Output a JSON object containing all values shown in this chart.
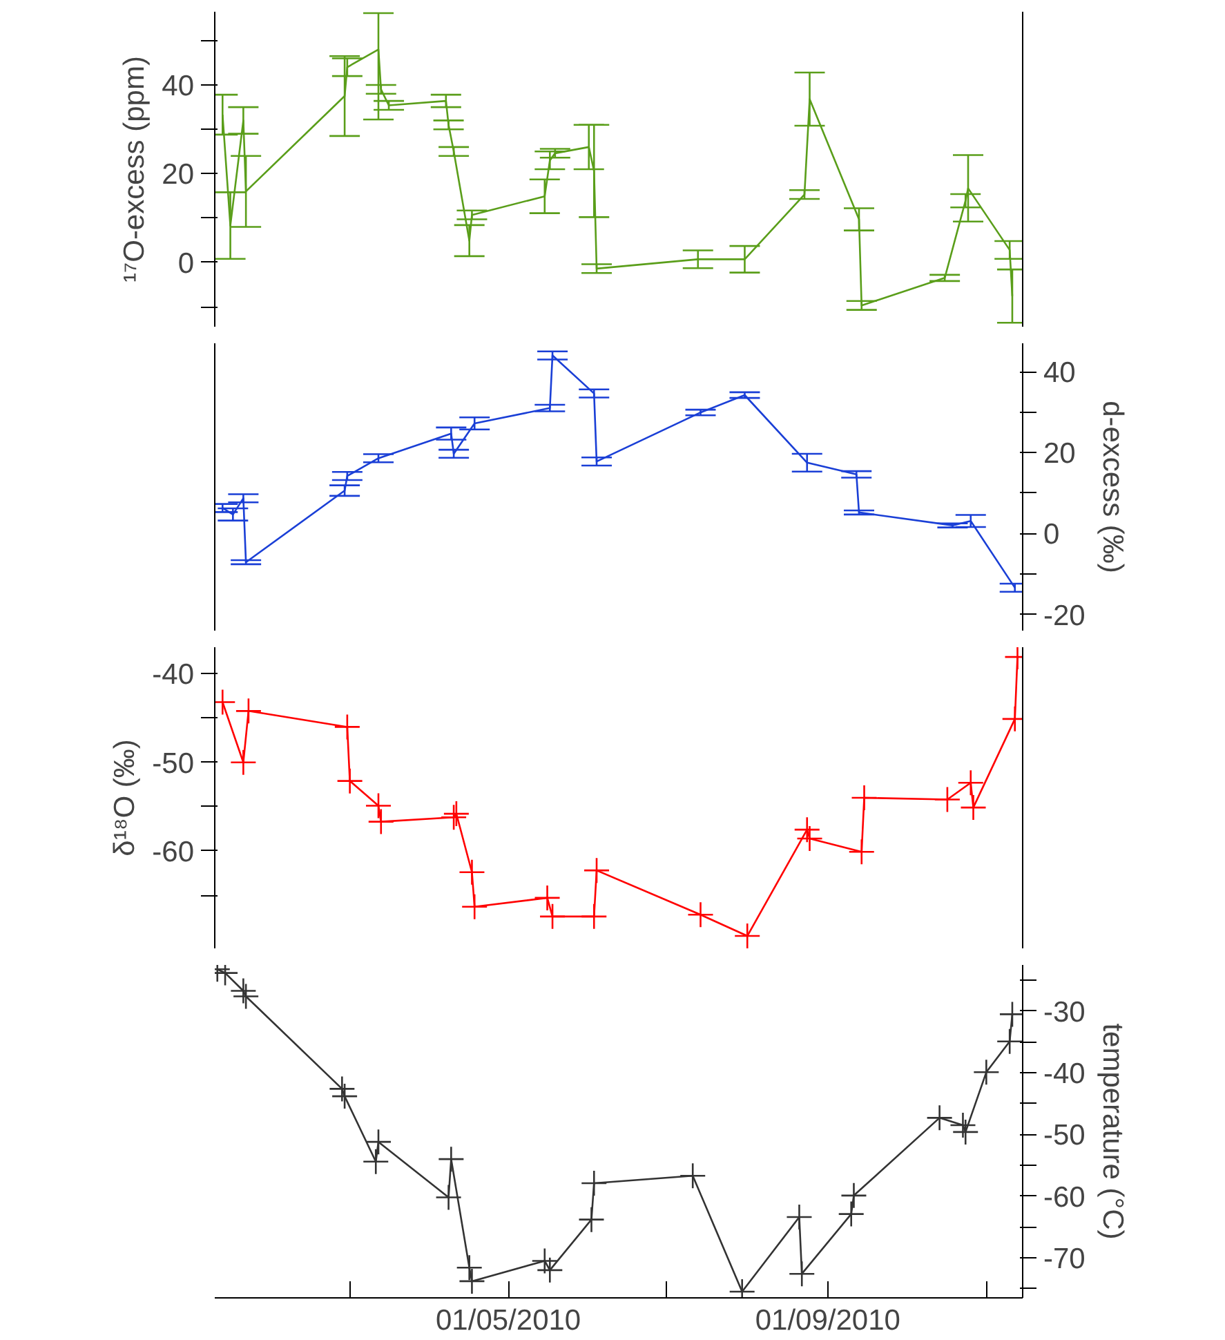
{
  "chart_data": [
    {
      "type": "line",
      "ylabel": "¹⁷O-excess (ppm)",
      "xlim": [
        "2010-01-08",
        "2010-11-15"
      ],
      "ylim": [
        -14.5,
        56.5
      ],
      "yticks": [
        {
          "value": -10,
          "label": null
        },
        0,
        {
          "value": 10,
          "label": null
        },
        20,
        {
          "value": 30,
          "label": null
        },
        40,
        {
          "value": 50,
          "label": null
        }
      ],
      "tick_labels": "y",
      "marker": "none",
      "line_style": "solid",
      "series": [
        {
          "color": "#5a9e1a",
          "x": [
            "2010-01-11",
            "2010-01-14",
            "2010-01-19",
            "2010-01-20",
            "2010-02-27",
            "2010-02-28",
            "2010-03-12",
            "2010-03-13",
            "2010-03-16",
            "2010-04-07",
            "2010-04-08",
            "2010-04-10",
            "2010-04-16",
            "2010-04-17",
            "2010-05-15",
            "2010-05-17",
            "2010-05-19",
            "2010-06-01",
            "2010-06-03",
            "2010-06-04",
            "2010-07-13",
            "2010-07-31",
            "2010-08-23",
            "2010-08-25",
            "2010-09-13",
            "2010-09-14",
            "2010-10-16",
            "2010-10-24",
            "2010-10-25",
            "2010-11-10",
            "2010-11-11"
          ],
          "values": [
            33.3,
            8.3,
            32,
            16,
            37.5,
            44,
            48,
            39,
            35.4,
            36.4,
            31,
            25,
            4.9,
            10.7,
            14.9,
            23,
            24.6,
            26,
            20.6,
            -1.4,
            0.7,
            0.7,
            15.3,
            36.8,
            9.7,
            -9.7,
            -3.5,
            13.9,
            16.7,
            2.8,
            -7.6
          ],
          "errors": [
            4.5,
            7.5,
            3,
            8,
            9,
            2,
            [
              32.2,
              56.2
            ],
            1,
            1,
            1.4,
            1,
            1,
            3.5,
            1,
            3.8,
            2,
            1,
            5,
            10.4,
            1,
            2,
            3,
            1,
            6,
            2.5,
            1,
            0.7,
            1.5,
            7.5,
            2,
            6
          ]
        }
      ]
    },
    {
      "type": "line",
      "y2label": "d-excess (‰)",
      "xlim": [
        "2010-01-08",
        "2010-11-15"
      ],
      "y2lim": [
        -24,
        47
      ],
      "y2ticks": [
        -20,
        {
          "value": -10,
          "label": null
        },
        0,
        {
          "value": 10,
          "label": null
        },
        20,
        {
          "value": 30,
          "label": null
        },
        40
      ],
      "tick_labels": "y",
      "marker": "none",
      "line_style": "solid",
      "series": [
        {
          "color": "#1a3fd6",
          "axis": "y2",
          "x": [
            "2010-01-11",
            "2010-01-15",
            "2010-01-19",
            "2010-01-20",
            "2010-02-27",
            "2010-02-28",
            "2010-03-12",
            "2010-04-09",
            "2010-04-10",
            "2010-04-18",
            "2010-05-17",
            "2010-05-18",
            "2010-06-03",
            "2010-06-04",
            "2010-07-14",
            "2010-07-31",
            "2010-08-24",
            "2010-09-12",
            "2010-09-13",
            "2010-10-19",
            "2010-10-26",
            "2010-11-12"
          ],
          "values": [
            6.3,
            4.7,
            8.7,
            -7.1,
            10.6,
            14.2,
            18.6,
            24.7,
            19.7,
            27.2,
            31,
            44,
            34.6,
            17.8,
            29.9,
            34.2,
            17.5,
            14.6,
            5.2,
            2,
            3.1,
            -13.4
          ],
          "errors": [
            1,
            1.5,
            1,
            0.5,
            1.3,
            1,
            1,
            1.5,
            1,
            1.5,
            0.8,
            1,
            1,
            1,
            0.7,
            0.7,
            2.2,
            0.8,
            0.5,
            0.5,
            1.5,
            1
          ]
        }
      ]
    },
    {
      "type": "line",
      "ylabel": "δ¹⁸O (‰)",
      "xlim": [
        "2010-01-08",
        "2010-11-15"
      ],
      "ylim": [
        -71,
        -37
      ],
      "yticks": [
        -40,
        {
          "value": -45,
          "label": null
        },
        -50,
        {
          "value": -55,
          "label": null
        },
        -60,
        {
          "value": -65,
          "label": null
        }
      ],
      "tick_labels": "y",
      "marker": "cross",
      "line_style": "solid",
      "series": [
        {
          "color": "#ff0000",
          "x": [
            "2010-01-11",
            "2010-01-19",
            "2010-01-21",
            "2010-02-28",
            "2010-03-01",
            "2010-03-12",
            "2010-03-13",
            "2010-04-10",
            "2010-04-11",
            "2010-04-17",
            "2010-04-18",
            "2010-05-16",
            "2010-05-18",
            "2010-06-03",
            "2010-06-04",
            "2010-07-14",
            "2010-08-01",
            "2010-08-24",
            "2010-08-25",
            "2010-09-14",
            "2010-09-15",
            "2010-10-17",
            "2010-10-26",
            "2010-10-27",
            "2010-11-12",
            "2010-11-13"
          ],
          "values": [
            -43.2,
            -50,
            -44.2,
            -46,
            -52.1,
            -54.9,
            -56.7,
            -56.2,
            -55.8,
            -62.4,
            -66.3,
            -65.3,
            -67.4,
            -67.4,
            -62.2,
            -67.2,
            -69.6,
            -57.6,
            -58.6,
            -60.1,
            -54,
            -54.2,
            -52.3,
            -55.1,
            -45.1,
            -38.1
          ]
        }
      ]
    },
    {
      "type": "line",
      "y2label": "temperature (°C)",
      "xlim": [
        "2010-01-08",
        "2010-11-15"
      ],
      "xticks": [
        {
          "value": "2010-03-01",
          "label": null
        },
        {
          "value": "2010-05-01",
          "label": "01/05/2010"
        },
        {
          "value": "2010-07-01",
          "label": null
        },
        {
          "value": "2010-09-01",
          "label": "01/09/2010"
        },
        {
          "value": "2010-11-01",
          "label": null
        }
      ],
      "y2lim": [
        -76.5,
        -22.5
      ],
      "y2ticks": [
        {
          "value": -75,
          "label": null
        },
        -70,
        {
          "value": -65,
          "label": null
        },
        -60,
        {
          "value": -55,
          "label": null
        },
        -50,
        {
          "value": -45,
          "label": null
        },
        -40,
        {
          "value": -35,
          "label": null
        },
        -30,
        {
          "value": -25,
          "label": null
        }
      ],
      "marker": "cross",
      "line_style": "solid",
      "series": [
        {
          "color": "#333333",
          "axis": "y2",
          "x": [
            "2010-01-09",
            "2010-01-12",
            "2010-01-19",
            "2010-01-20",
            "2010-02-26",
            "2010-02-27",
            "2010-03-11",
            "2010-03-12",
            "2010-04-08",
            "2010-04-09",
            "2010-04-16",
            "2010-04-17",
            "2010-05-15",
            "2010-05-17",
            "2010-06-02",
            "2010-06-03",
            "2010-07-11",
            "2010-07-30",
            "2010-08-21",
            "2010-08-22",
            "2010-09-10",
            "2010-09-11",
            "2010-10-14",
            "2010-10-23",
            "2010-10-24",
            "2010-11-01",
            "2010-11-10",
            "2010-11-11"
          ],
          "values": [
            -23.2,
            -23.8,
            -26.7,
            -27.6,
            -42.6,
            -43.8,
            -54.4,
            -51.2,
            -60.2,
            -54,
            -71.6,
            -73.8,
            -70.5,
            -72,
            -63.8,
            -57.9,
            -56.7,
            -75.5,
            -63.4,
            -72.6,
            -62.9,
            -59.9,
            -47.3,
            -48.5,
            -49.6,
            -39.9,
            -34.9,
            -30.5
          ]
        }
      ]
    }
  ]
}
